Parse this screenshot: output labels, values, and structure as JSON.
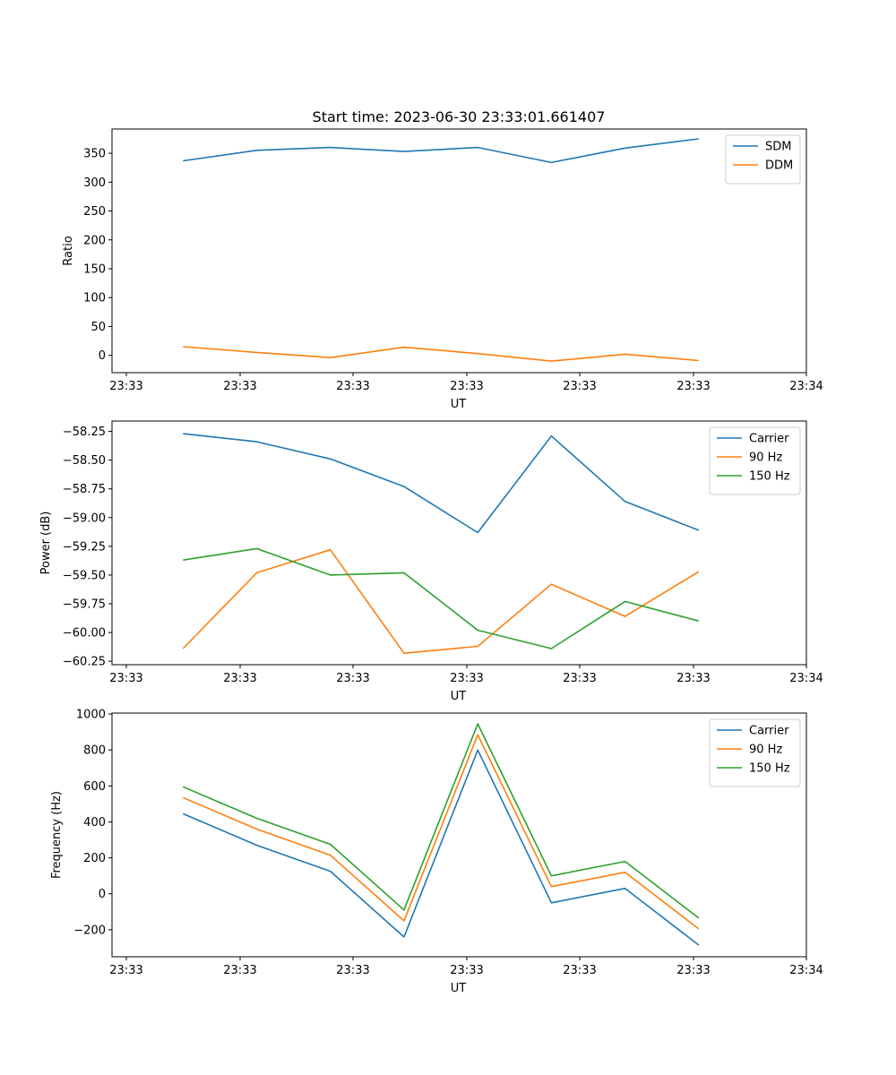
{
  "figure": {
    "title": "Start time: 2023-06-30 23:33:01.661407"
  },
  "chart_data": [
    {
      "type": "line",
      "xlabel": "UT",
      "ylabel": "Ratio",
      "x_tick_labels": [
        "23:33",
        "23:33",
        "23:33",
        "23:33",
        "23:33",
        "23:33",
        "23:34"
      ],
      "y_ticks": [
        0,
        50,
        100,
        150,
        200,
        250,
        300,
        350
      ],
      "y_tick_labels": [
        "0",
        "50",
        "100",
        "150",
        "200",
        "250",
        "300",
        "350"
      ],
      "xlim": [
        0,
        6
      ],
      "ylim": [
        -30,
        392
      ],
      "x": [
        0.5,
        1.15,
        1.8,
        2.45,
        3.1,
        3.75,
        4.4,
        5.05
      ],
      "legend": "top-right",
      "grid": false,
      "series": [
        {
          "name": "SDM",
          "color": "#1f77b4",
          "values": [
            337,
            355,
            360,
            353,
            360,
            334,
            359,
            375
          ]
        },
        {
          "name": "DDM",
          "color": "#ff7f0e",
          "values": [
            15,
            5,
            -4,
            14,
            3,
            -10,
            2,
            -9
          ]
        }
      ]
    },
    {
      "type": "line",
      "xlabel": "UT",
      "ylabel": "Power (dB)",
      "x_tick_labels": [
        "23:33",
        "23:33",
        "23:33",
        "23:33",
        "23:33",
        "23:33",
        "23:34"
      ],
      "y_ticks": [
        -58.25,
        -58.5,
        -58.75,
        -59.0,
        -59.25,
        -59.5,
        -59.75,
        -60.0,
        -60.25
      ],
      "y_tick_labels": [
        "−58.25",
        "−58.50",
        "−58.75",
        "−59.00",
        "−59.25",
        "−59.50",
        "−59.75",
        "−60.00",
        "−60.25"
      ],
      "xlim": [
        0,
        6
      ],
      "ylim": [
        -60.28,
        -58.16
      ],
      "x": [
        0.5,
        1.15,
        1.8,
        2.45,
        3.1,
        3.75,
        4.4,
        5.05
      ],
      "legend": "top-right",
      "grid": false,
      "series": [
        {
          "name": "Carrier",
          "color": "#1f77b4",
          "values": [
            -58.27,
            -58.34,
            -58.49,
            -58.73,
            -59.13,
            -58.29,
            -58.86,
            -59.11
          ]
        },
        {
          "name": "90 Hz",
          "color": "#ff7f0e",
          "values": [
            -60.14,
            -59.48,
            -59.28,
            -60.18,
            -60.12,
            -59.58,
            -59.86,
            -59.47
          ]
        },
        {
          "name": "150 Hz",
          "color": "#2ca02c",
          "values": [
            -59.37,
            -59.27,
            -59.5,
            -59.48,
            -59.98,
            -60.14,
            -59.73,
            -59.9
          ]
        }
      ]
    },
    {
      "type": "line",
      "xlabel": "UT",
      "ylabel": "Frequency (Hz)",
      "x_tick_labels": [
        "23:33",
        "23:33",
        "23:33",
        "23:33",
        "23:33",
        "23:33",
        "23:34"
      ],
      "y_ticks": [
        -200,
        0,
        200,
        400,
        600,
        800,
        1000
      ],
      "y_tick_labels": [
        "−200",
        "0",
        "200",
        "400",
        "600",
        "800",
        "1000"
      ],
      "xlim": [
        0,
        6
      ],
      "ylim": [
        -350,
        1005
      ],
      "x": [
        0.5,
        1.15,
        1.8,
        2.45,
        3.1,
        3.75,
        4.4,
        5.05
      ],
      "legend": "top-right",
      "grid": false,
      "series": [
        {
          "name": "Carrier",
          "color": "#1f77b4",
          "values": [
            445,
            270,
            125,
            -240,
            800,
            -50,
            30,
            -285
          ]
        },
        {
          "name": "90 Hz",
          "color": "#ff7f0e",
          "values": [
            535,
            360,
            215,
            -150,
            885,
            40,
            120,
            -195
          ]
        },
        {
          "name": "150 Hz",
          "color": "#2ca02c",
          "values": [
            595,
            420,
            275,
            -90,
            945,
            100,
            180,
            -135
          ]
        }
      ]
    }
  ]
}
